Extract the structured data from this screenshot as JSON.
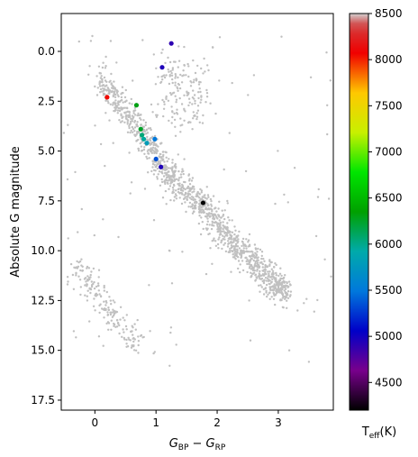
{
  "chart_data": {
    "type": "scatter",
    "xlabel": {
      "main": "G",
      "sub1": "BP",
      "minus": " − ",
      "main2": "G",
      "sub2": "RP"
    },
    "ylabel": "Absolute G magnitude",
    "xlim": [
      -0.55,
      3.9
    ],
    "ylim": [
      18.0,
      -1.9
    ],
    "y_inverted": true,
    "x_ticks": [
      0,
      1,
      2,
      3
    ],
    "y_ticks": [
      0.0,
      2.5,
      5.0,
      7.5,
      10.0,
      12.5,
      15.0,
      17.5
    ],
    "x_tick_labels": [
      "0",
      "1",
      "2",
      "3"
    ],
    "y_tick_labels": [
      "0.0",
      "2.5",
      "5.0",
      "7.5",
      "10.0",
      "12.5",
      "15.0",
      "17.5"
    ],
    "background_color": "#c0c0c0",
    "colorbar": {
      "label_main": "T",
      "label_sub": "eff",
      "label_unit": "(K)",
      "range": [
        4200,
        8500
      ],
      "ticks": [
        4500,
        5000,
        5500,
        6000,
        6500,
        7000,
        7500,
        8000,
        8500
      ],
      "tick_labels": [
        "4500",
        "5000",
        "5500",
        "6000",
        "6500",
        "7000",
        "7500",
        "8000",
        "8500"
      ],
      "colormap": "nipy_spectral"
    },
    "series": [
      {
        "points": [
          {
            "x": 1.25,
            "y": -0.4,
            "teff": 4900
          },
          {
            "x": 1.1,
            "y": 0.8,
            "teff": 4950
          },
          {
            "x": 0.2,
            "y": 2.3,
            "teff": 8050
          },
          {
            "x": 0.68,
            "y": 2.7,
            "teff": 6300
          },
          {
            "x": 0.75,
            "y": 3.9,
            "teff": 6250
          },
          {
            "x": 0.77,
            "y": 4.2,
            "teff": 6050
          },
          {
            "x": 0.8,
            "y": 4.4,
            "teff": 5950
          },
          {
            "x": 0.85,
            "y": 4.6,
            "teff": 5800
          },
          {
            "x": 0.98,
            "y": 4.4,
            "teff": 5500
          },
          {
            "x": 1.0,
            "y": 5.4,
            "teff": 5350
          },
          {
            "x": 1.08,
            "y": 5.8,
            "teff": 4950
          },
          {
            "x": 1.77,
            "y": 7.6,
            "teff": 4200
          }
        ]
      }
    ]
  }
}
